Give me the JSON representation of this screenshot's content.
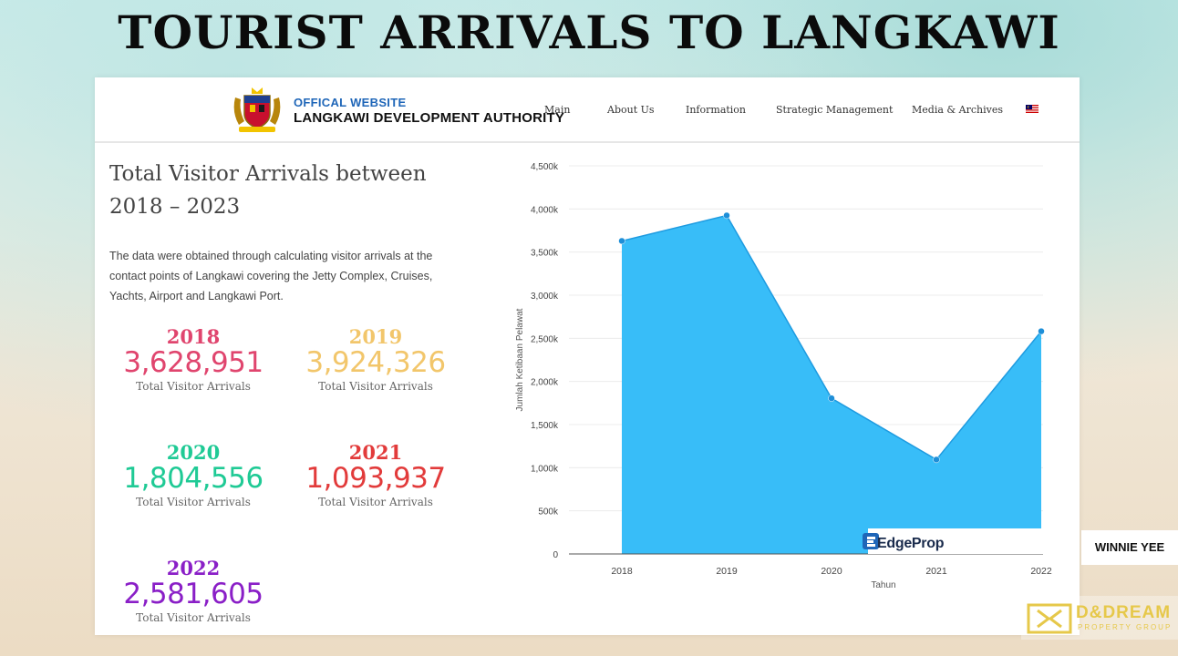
{
  "headline": "TOURIST ARRIVALS TO LANGKAWI",
  "site": {
    "line1": "OFFICAL WEBSITE",
    "line2": "LANGKAWI DEVELOPMENT AUTHORITY"
  },
  "nav": [
    "Main",
    "About Us",
    "Information",
    "Strategic Management",
    "Media & Archives"
  ],
  "section_title": "Total Visitor Arrivals between 2018 – 2023",
  "description": "The data were obtained through calculating visitor arrivals at the contact points of Langkawi covering the Jetty Complex, Cruises, Yachts, Airport and Langkawi Port.",
  "stats": [
    {
      "year": "2018",
      "value": "3,628,951",
      "caption": "Total Visitor Arrivals",
      "color": "#e0456e"
    },
    {
      "year": "2019",
      "value": "3,924,326",
      "caption": "Total Visitor Arrivals",
      "color": "#f2c66b"
    },
    {
      "year": "2020",
      "value": "1,804,556",
      "caption": "Total Visitor Arrivals",
      "color": "#1fca95"
    },
    {
      "year": "2021",
      "value": "1,093,937",
      "caption": "Total Visitor Arrivals",
      "color": "#e23b3b"
    },
    {
      "year": "2022",
      "value": "2,581,605",
      "caption": "Total Visitor Arrivals",
      "color": "#8a1fc7"
    }
  ],
  "chart_data": {
    "type": "area",
    "categories": [
      "2018",
      "2019",
      "2020",
      "2021",
      "2022"
    ],
    "values": [
      3628951,
      3924326,
      1804556,
      1093937,
      2581605
    ],
    "ytick_labels": [
      "0",
      "500k",
      "1,000k",
      "1,500k",
      "2,000k",
      "2,500k",
      "3,000k",
      "3,500k",
      "4,000k",
      "4,500k"
    ],
    "ylim": [
      0,
      4500000
    ],
    "xlabel": "Tahun",
    "ylabel": "Jumlah Ketibaan Pelawat",
    "color": "#38bdf8",
    "grid": true
  },
  "watermark": "EdgeProp",
  "credit": "WINNIE YEE",
  "brand": {
    "name": "D&DREAM",
    "sub": "PROPERTY GROUP"
  }
}
